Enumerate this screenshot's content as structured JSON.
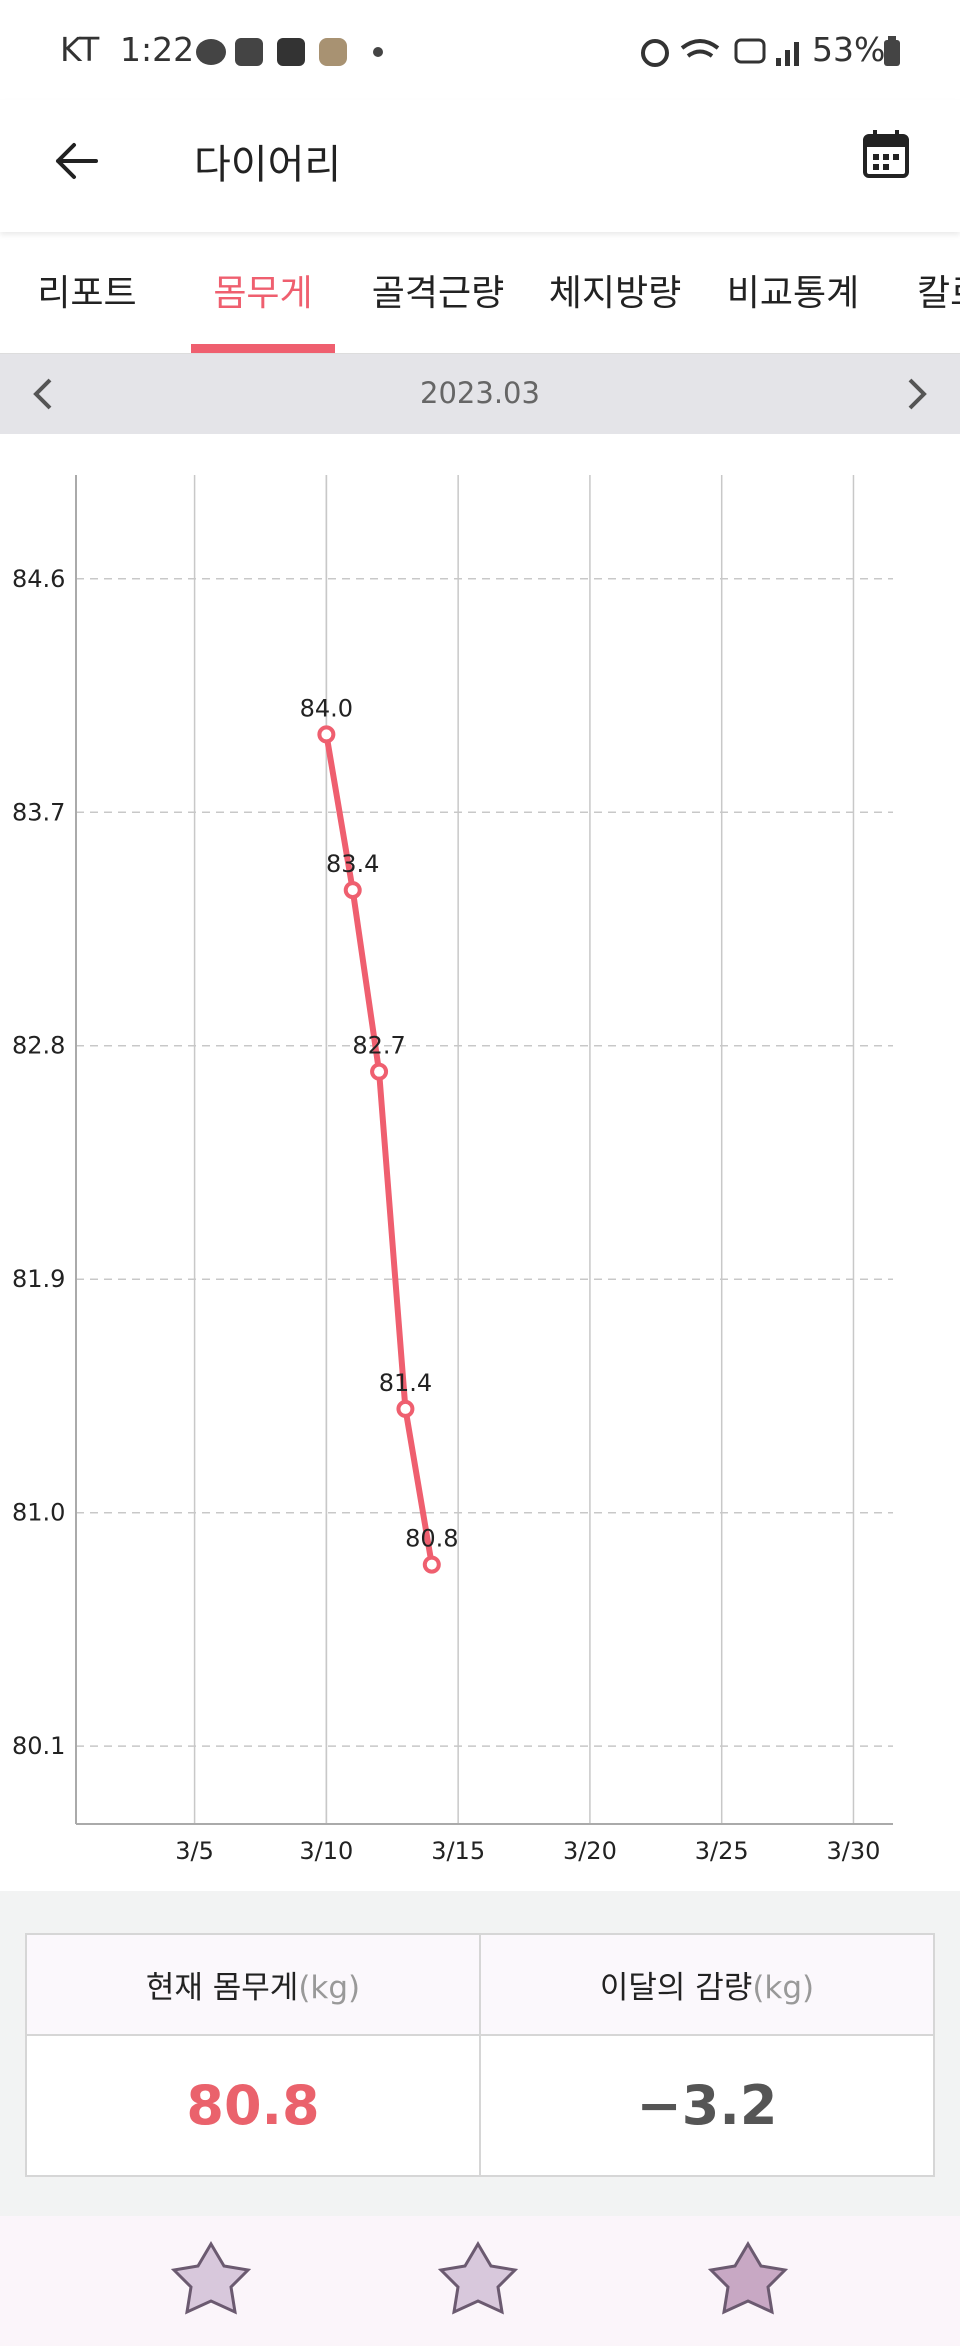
{
  "status_bar": {
    "carrier": "KT",
    "time": "1:22",
    "battery": "53%"
  },
  "header": {
    "title": "다이어리"
  },
  "tabs": [
    "리포트",
    "몸무게",
    "골격근량",
    "체지방량",
    "비교통계",
    "칼로리"
  ],
  "active_tab": 1,
  "period": "2023.03",
  "chart_data": {
    "type": "line",
    "x": [
      10,
      11,
      12,
      13,
      14
    ],
    "values": [
      84.0,
      83.4,
      82.7,
      81.4,
      80.8
    ],
    "value_labels": [
      "84.0",
      "83.4",
      "82.7",
      "81.4",
      "80.8"
    ],
    "color": "#ef5f6f",
    "xlim": [
      0.5,
      31.5
    ],
    "xticks": [
      {
        "value": 5,
        "label": "3/5"
      },
      {
        "value": 10,
        "label": "3/10"
      },
      {
        "value": 15,
        "label": "3/15"
      },
      {
        "value": 20,
        "label": "3/20"
      },
      {
        "value": 25,
        "label": "3/25"
      },
      {
        "value": 30,
        "label": "3/30"
      }
    ],
    "ylim": [
      79.8,
      85.0
    ],
    "yticks": [
      {
        "value": 80.1,
        "label": "80.1"
      },
      {
        "value": 81,
        "label": "81.0"
      },
      {
        "value": 81.9,
        "label": "81.9"
      },
      {
        "value": 82.8,
        "label": "82.8"
      },
      {
        "value": 83.7,
        "label": "83.7"
      },
      {
        "value": 84.6,
        "label": "84.6"
      }
    ],
    "grid": true
  },
  "summary": {
    "headers": [
      {
        "label": "현재 몸무게",
        "unit": "(kg)"
      },
      {
        "label": "이달의 감량",
        "unit": "(kg)"
      }
    ],
    "values": [
      "80.8",
      "−3.2"
    ]
  }
}
